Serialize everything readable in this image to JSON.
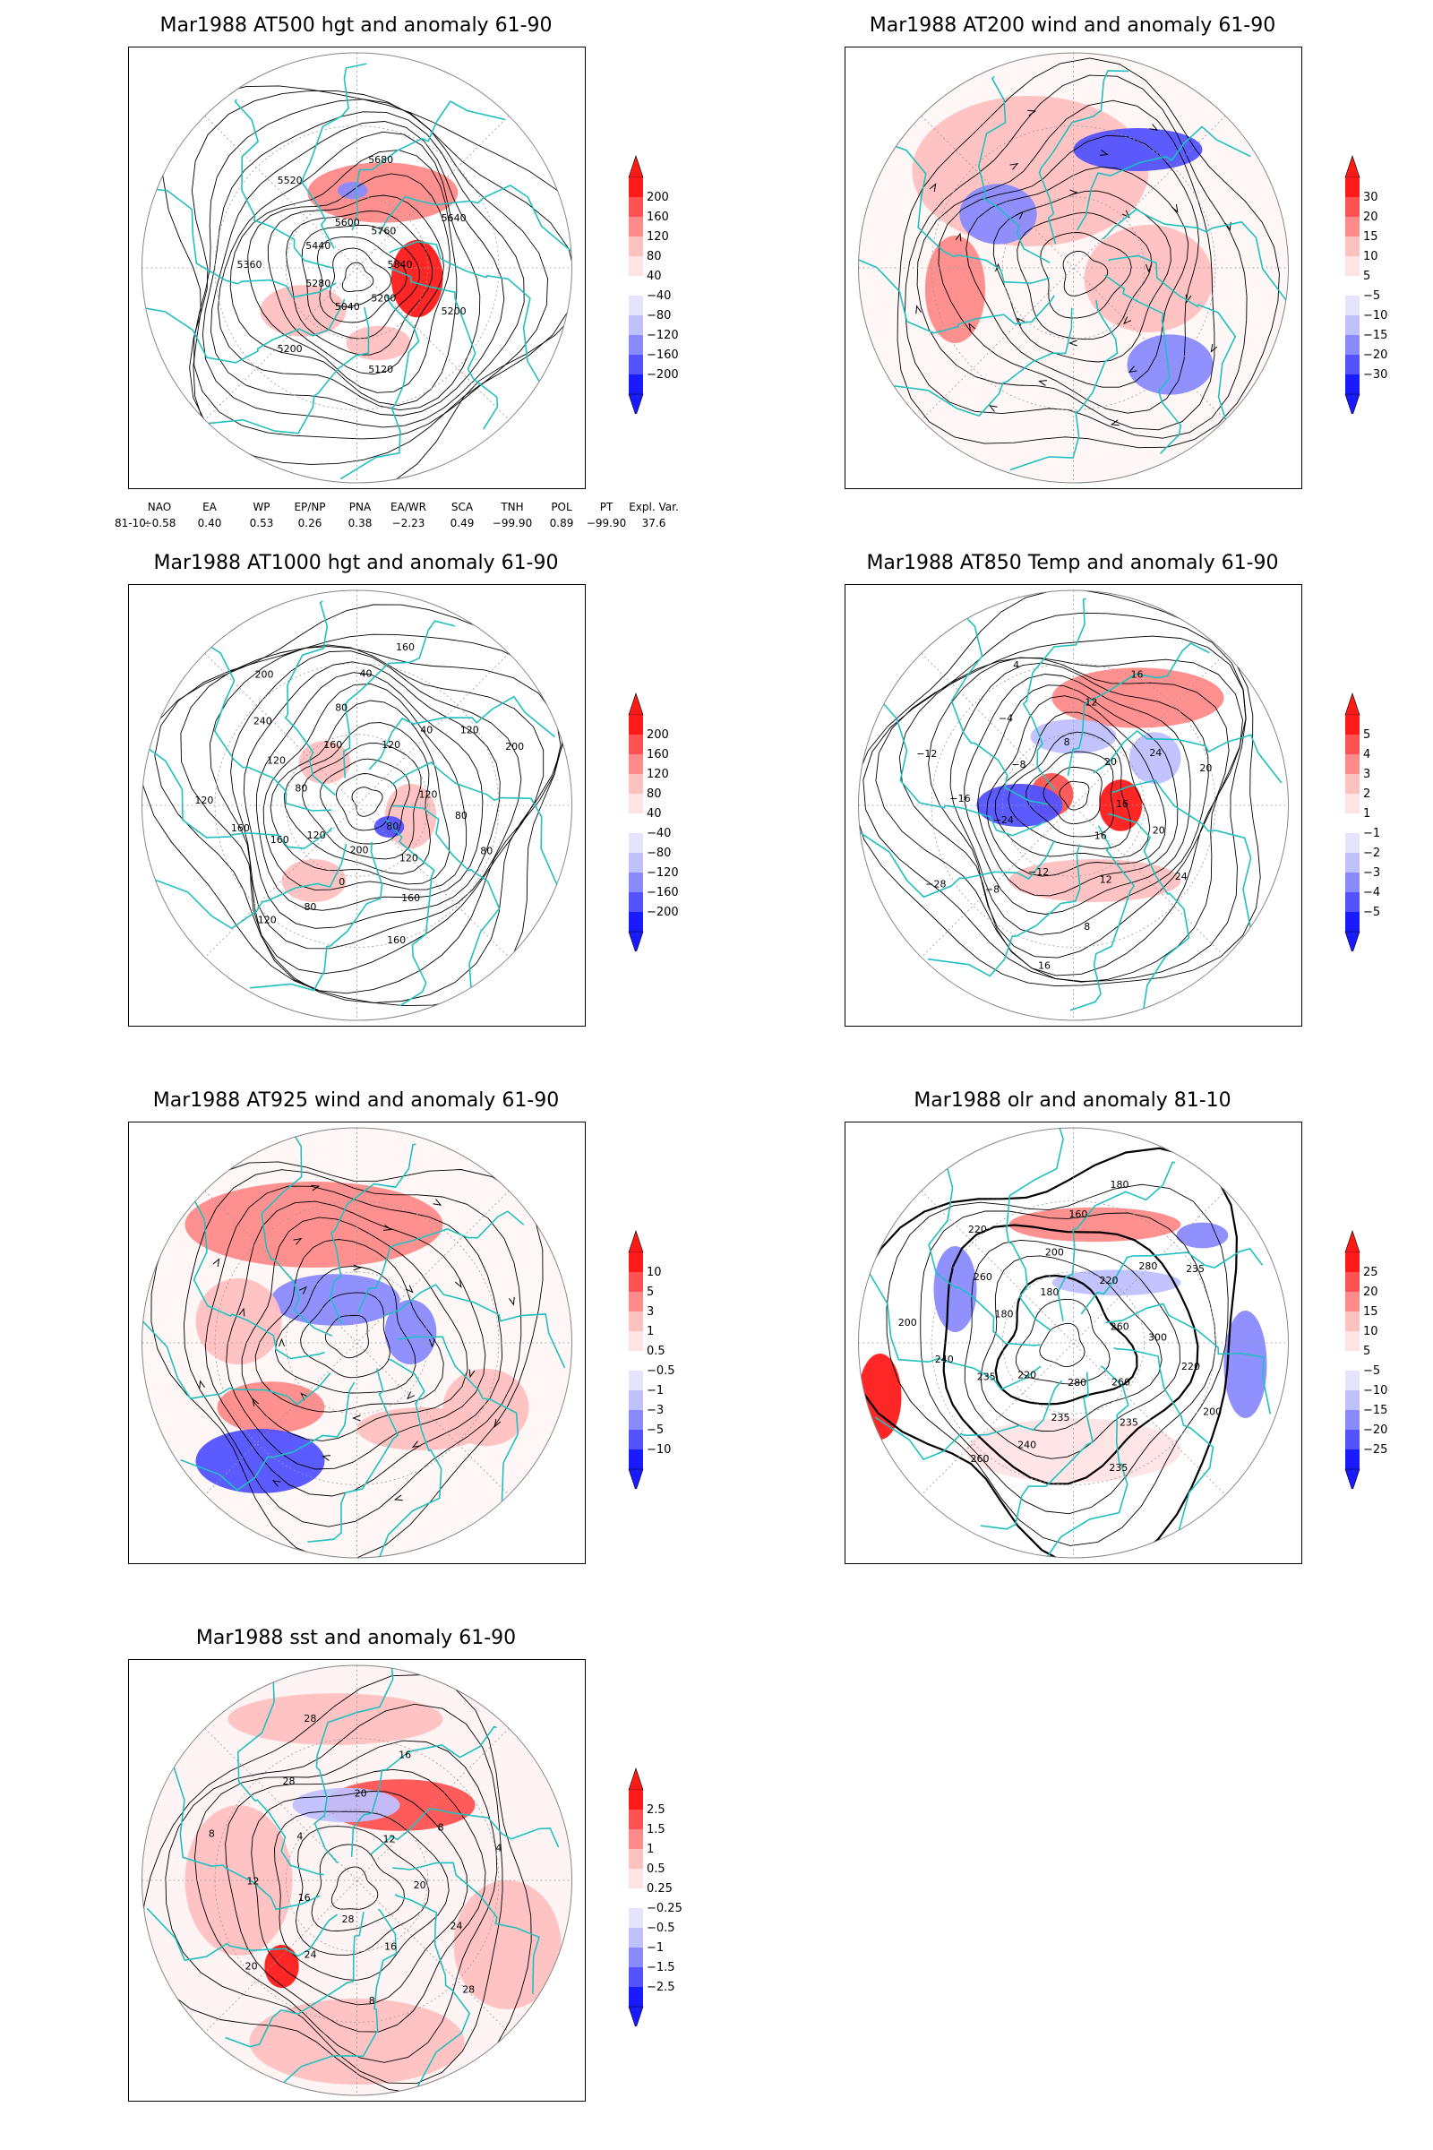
{
  "panels": [
    {
      "id": "p1",
      "title": "Mar1988 AT500 hgt and anomaly 61-90",
      "kind": "height",
      "contour_labels": [
        "5840",
        "5200",
        "5200",
        "5120",
        "5040",
        "5200",
        "5280",
        "5360",
        "5440",
        "5520",
        "5600",
        "5680",
        "5760",
        "5640"
      ],
      "colorbar": {
        "labels": [
          "200",
          "160",
          "120",
          "80",
          "40",
          "−40",
          "−80",
          "−120",
          "−160",
          "−200"
        ]
      }
    },
    {
      "id": "p2",
      "title": "Mar1988 AT200 wind and anomaly 61-90",
      "kind": "wind",
      "contour_labels": [],
      "colorbar": {
        "labels": [
          "30",
          "20",
          "15",
          "10",
          "5",
          "−5",
          "−10",
          "−15",
          "−20",
          "−30"
        ]
      }
    },
    {
      "id": "p3",
      "title": "Mar1988 AT1000 hgt and anomaly 61-90",
      "kind": "height",
      "contour_labels": [
        "80",
        "120",
        "160",
        "160",
        "200",
        "0",
        "80",
        "120",
        "120",
        "160",
        "160",
        "120",
        "80",
        "120",
        "240",
        "200",
        "160",
        "80",
        "40",
        "160",
        "120",
        "40",
        "120",
        "200",
        "120",
        "80",
        "80"
      ],
      "colorbar": {
        "labels": [
          "200",
          "160",
          "120",
          "80",
          "40",
          "−40",
          "−80",
          "−120",
          "−160",
          "−200"
        ]
      }
    },
    {
      "id": "p4",
      "title": "Mar1988 AT850 Temp and anomaly 61-90",
      "kind": "temp",
      "contour_labels": [
        "16",
        "12",
        "8",
        "16",
        "−12",
        "−8",
        "−28",
        "−24",
        "−16",
        "−12",
        "−8",
        "−4",
        "4",
        "8",
        "12",
        "16",
        "20",
        "24",
        "20",
        "16",
        "20",
        "24"
      ],
      "colorbar": {
        "labels": [
          "5",
          "4",
          "3",
          "2",
          "1",
          "−1",
          "−2",
          "−3",
          "−4",
          "−5"
        ]
      }
    },
    {
      "id": "p5",
      "title": "Mar1988 AT925 wind and anomaly 61-90",
      "kind": "wind",
      "contour_labels": [],
      "colorbar": {
        "labels": [
          "10",
          "5",
          "3",
          "1",
          "0.5",
          "−0.5",
          "−1",
          "−3",
          "−5",
          "−10"
        ]
      }
    },
    {
      "id": "p6",
      "title": "Mar1988 olr and anomaly 81-10",
      "kind": "olr",
      "contour_labels": [
        "280",
        "235",
        "240",
        "260",
        "220",
        "235",
        "240",
        "200",
        "180",
        "260",
        "220",
        "180",
        "200",
        "160",
        "180",
        "220",
        "280",
        "235",
        "260",
        "300",
        "220",
        "200",
        "260",
        "235",
        "235"
      ],
      "colorbar": {
        "labels": [
          "25",
          "20",
          "15",
          "10",
          "5",
          "−5",
          "−10",
          "−15",
          "−20",
          "−25"
        ]
      }
    },
    {
      "id": "p7",
      "title": "Mar1988 sst and anomaly 61-90",
      "kind": "sst",
      "contour_labels": [
        "28",
        "24",
        "20",
        "16",
        "12",
        "8",
        "4",
        "28",
        "28",
        "20",
        "16",
        "12",
        "8",
        "4",
        "20",
        "24",
        "28",
        "16",
        "8"
      ],
      "colorbar": {
        "labels": [
          "2.5",
          "1.5",
          "1",
          "0.5",
          "0.25",
          "−0.25",
          "−0.5",
          "−1",
          "−1.5",
          "−2.5"
        ]
      }
    }
  ],
  "teleconnections": {
    "headers": [
      "NAO",
      "EA",
      "WP",
      "EP/NP",
      "PNA",
      "EA/WR",
      "SCA",
      "TNH",
      "POL",
      "PT",
      "Expl. Var."
    ],
    "row_label": "81-10:",
    "values": [
      "−0.58",
      "0.40",
      "0.53",
      "0.26",
      "0.38",
      "−2.23",
      "0.49",
      "−99.90",
      "0.89",
      "−99.90",
      "37.6"
    ]
  },
  "colors": {
    "coast": "#20c0c0",
    "red_scale": [
      "#ff1a1a",
      "#ff5252",
      "#ff8a8a",
      "#ffc0c0",
      "#ffe4e4"
    ],
    "blue_scale": [
      "#e4e4ff",
      "#c0c0ff",
      "#8a8aff",
      "#5252ff",
      "#1a1aff"
    ]
  }
}
